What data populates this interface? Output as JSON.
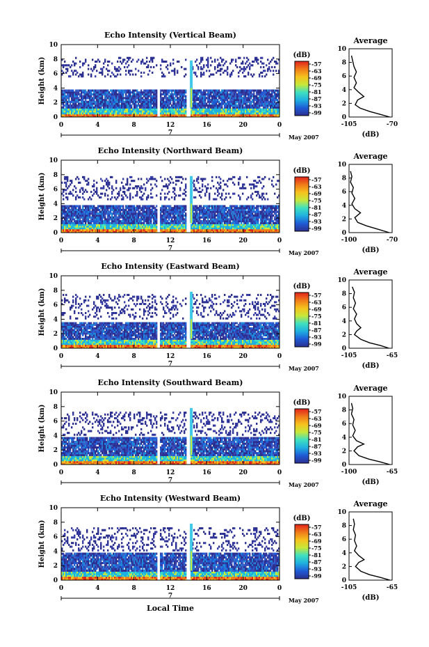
{
  "chart_data": [
    {
      "type": "heatmap",
      "title": "Echo Intensity (Vertical Beam)",
      "ylabel": "Height (km)",
      "x_ticks": [
        "0",
        "4",
        "8",
        "12",
        "16",
        "20",
        "0"
      ],
      "y_ticks": [
        "0",
        "2",
        "4",
        "6",
        "8",
        "10"
      ],
      "xlim": [
        0,
        24
      ],
      "ylim": [
        0,
        10
      ],
      "date_label": "7",
      "month_label": "May 2007",
      "colorbar": {
        "unit": "(dB)",
        "ticks": [
          "-57",
          "-63",
          "-69",
          "-75",
          "-81",
          "-87",
          "-93",
          "-99"
        ]
      },
      "gap_hours": [
        10.5,
        13.8
      ],
      "spike_hour": 14.3,
      "layers": [
        {
          "from": 0,
          "to": 0.4,
          "level": "high"
        },
        {
          "from": 0.4,
          "to": 1.2,
          "level": "mid"
        },
        {
          "from": 1.2,
          "to": 3.8,
          "level": "low"
        },
        {
          "from": 5.5,
          "to": 8.3,
          "level": "sparse"
        }
      ],
      "profile": {
        "title": "Average",
        "xlabel": "(dB)",
        "x_ticks": [
          "-105",
          "-70"
        ],
        "xlim": [
          -105,
          -70
        ],
        "y_ticks": [
          "0",
          "2",
          "4",
          "6",
          "8",
          "10"
        ],
        "points": [
          [
            -72,
            0
          ],
          [
            -80,
            0.4
          ],
          [
            -88,
            0.8
          ],
          [
            -96,
            1.3
          ],
          [
            -100,
            1.8
          ],
          [
            -98,
            2.5
          ],
          [
            -93,
            3.0
          ],
          [
            -97,
            3.6
          ],
          [
            -101,
            4.3
          ],
          [
            -99,
            5.0
          ],
          [
            -101,
            5.8
          ],
          [
            -99,
            6.6
          ],
          [
            -101,
            7.4
          ],
          [
            -102,
            8.2
          ],
          [
            -103,
            9
          ]
        ]
      }
    },
    {
      "type": "heatmap",
      "title": "Echo Intensity (Northward Beam)",
      "ylabel": "Height (km)",
      "x_ticks": [
        "0",
        "4",
        "8",
        "12",
        "16",
        "20",
        "0"
      ],
      "y_ticks": [
        "0",
        "2",
        "4",
        "6",
        "8",
        "10"
      ],
      "xlim": [
        0,
        24
      ],
      "ylim": [
        0,
        10
      ],
      "date_label": "7",
      "month_label": "May 2007",
      "colorbar": {
        "unit": "(dB)",
        "ticks": [
          "-57",
          "-63",
          "-69",
          "-75",
          "-81",
          "-87",
          "-93",
          "-99"
        ]
      },
      "gap_hours": [
        10.5,
        13.8
      ],
      "spike_hour": 14.3,
      "layers": [
        {
          "from": 0,
          "to": 0.5,
          "level": "high"
        },
        {
          "from": 0.5,
          "to": 1.2,
          "level": "mid"
        },
        {
          "from": 1.2,
          "to": 3.8,
          "level": "low"
        },
        {
          "from": 4.5,
          "to": 7.8,
          "level": "sparse"
        }
      ],
      "profile": {
        "title": "Average",
        "xlabel": "(dB)",
        "x_ticks": [
          "-100",
          "-70"
        ],
        "xlim": [
          -100,
          -70
        ],
        "y_ticks": [
          "0",
          "2",
          "4",
          "6",
          "8",
          "10"
        ],
        "points": [
          [
            -72,
            0
          ],
          [
            -80,
            0.5
          ],
          [
            -88,
            1.0
          ],
          [
            -94,
            1.5
          ],
          [
            -96,
            2.2
          ],
          [
            -92,
            2.9
          ],
          [
            -96,
            3.5
          ],
          [
            -98,
            4.2
          ],
          [
            -96,
            5.0
          ],
          [
            -98,
            5.8
          ],
          [
            -97,
            6.6
          ],
          [
            -99,
            7.4
          ],
          [
            -98,
            8.2
          ],
          [
            -99,
            9
          ]
        ]
      }
    },
    {
      "type": "heatmap",
      "title": "Echo Intensity (Eastward Beam)",
      "ylabel": "Height (km)",
      "x_ticks": [
        "0",
        "4",
        "8",
        "12",
        "16",
        "20",
        "0"
      ],
      "y_ticks": [
        "0",
        "2",
        "4",
        "6",
        "8",
        "10"
      ],
      "xlim": [
        0,
        24
      ],
      "ylim": [
        0,
        10
      ],
      "date_label": "7",
      "month_label": "May 2007",
      "colorbar": {
        "unit": "(dB)",
        "ticks": [
          "-57",
          "-63",
          "-69",
          "-75",
          "-81",
          "-87",
          "-93",
          "-99"
        ]
      },
      "gap_hours": [
        10.5,
        13.8
      ],
      "spike_hour": 14.3,
      "layers": [
        {
          "from": 0,
          "to": 0.5,
          "level": "high"
        },
        {
          "from": 0.5,
          "to": 1.2,
          "level": "mid"
        },
        {
          "from": 1.2,
          "to": 3.6,
          "level": "low"
        },
        {
          "from": 4.0,
          "to": 7.5,
          "level": "sparse"
        }
      ],
      "profile": {
        "title": "Average",
        "xlabel": "(dB)",
        "x_ticks": [
          "-105",
          "-65"
        ],
        "xlim": [
          -105,
          -65
        ],
        "y_ticks": [
          "0",
          "2",
          "4",
          "6",
          "8",
          "10"
        ],
        "points": [
          [
            -68,
            0
          ],
          [
            -76,
            0.4
          ],
          [
            -86,
            0.8
          ],
          [
            -94,
            1.3
          ],
          [
            -100,
            2.0
          ],
          [
            -98,
            2.5
          ],
          [
            -94,
            3.0
          ],
          [
            -98,
            3.6
          ],
          [
            -100,
            4.3
          ],
          [
            -98,
            5.0
          ],
          [
            -101,
            5.8
          ],
          [
            -99,
            6.6
          ],
          [
            -101,
            7.4
          ],
          [
            -100,
            8.2
          ],
          [
            -102,
            9
          ]
        ]
      }
    },
    {
      "type": "heatmap",
      "title": "Echo Intensity (Southward Beam)",
      "ylabel": "Height (km)",
      "x_ticks": [
        "0",
        "4",
        "8",
        "12",
        "16",
        "20",
        "0"
      ],
      "y_ticks": [
        "0",
        "2",
        "4",
        "6",
        "8",
        "10"
      ],
      "xlim": [
        0,
        24
      ],
      "ylim": [
        0,
        10
      ],
      "date_label": "7",
      "month_label": "May 2007",
      "colorbar": {
        "unit": "(dB)",
        "ticks": [
          "-57",
          "-63",
          "-69",
          "-75",
          "-81",
          "-87",
          "-93",
          "-99"
        ]
      },
      "gap_hours": [
        10.5,
        13.8
      ],
      "spike_hour": 14.3,
      "layers": [
        {
          "from": 0,
          "to": 0.5,
          "level": "high"
        },
        {
          "from": 0.5,
          "to": 1.2,
          "level": "mid"
        },
        {
          "from": 1.2,
          "to": 3.8,
          "level": "low"
        },
        {
          "from": 4.0,
          "to": 7.3,
          "level": "sparse"
        }
      ],
      "profile": {
        "title": "Average",
        "xlabel": "(dB)",
        "x_ticks": [
          "-100",
          "-65"
        ],
        "xlim": [
          -100,
          -65
        ],
        "y_ticks": [
          "0",
          "2",
          "4",
          "6",
          "8",
          "10"
        ],
        "points": [
          [
            -67,
            0
          ],
          [
            -75,
            0.4
          ],
          [
            -84,
            0.8
          ],
          [
            -92,
            1.3
          ],
          [
            -96,
            2.0
          ],
          [
            -93,
            2.6
          ],
          [
            -88,
            3.0
          ],
          [
            -94,
            3.5
          ],
          [
            -97,
            4.2
          ],
          [
            -95,
            5.0
          ],
          [
            -97,
            5.8
          ],
          [
            -96,
            6.6
          ],
          [
            -98,
            7.4
          ],
          [
            -97,
            8.2
          ],
          [
            -98,
            9
          ]
        ]
      }
    },
    {
      "type": "heatmap",
      "title": "Echo Intensity (Westward Beam)",
      "ylabel": "Height (km)",
      "x_ticks": [
        "0",
        "4",
        "8",
        "12",
        "16",
        "20",
        "0"
      ],
      "y_ticks": [
        "0",
        "2",
        "4",
        "6",
        "8",
        "10"
      ],
      "xlim": [
        0,
        24
      ],
      "ylim": [
        0,
        10
      ],
      "date_label": "7",
      "month_label": "May 2007",
      "xlabel": "Local Time",
      "colorbar": {
        "unit": "(dB)",
        "ticks": [
          "-57",
          "-63",
          "-69",
          "-75",
          "-81",
          "-87",
          "-93",
          "-99"
        ]
      },
      "gap_hours": [
        10.5,
        13.8
      ],
      "spike_hour": 14.3,
      "layers": [
        {
          "from": 0,
          "to": 0.5,
          "level": "high"
        },
        {
          "from": 0.5,
          "to": 1.2,
          "level": "mid"
        },
        {
          "from": 1.2,
          "to": 3.8,
          "level": "low"
        },
        {
          "from": 4.0,
          "to": 7.3,
          "level": "sparse"
        }
      ],
      "profile": {
        "title": "Average",
        "xlabel": "(dB)",
        "x_ticks": [
          "-105",
          "-65"
        ],
        "xlim": [
          -105,
          -65
        ],
        "y_ticks": [
          "0",
          "2",
          "4",
          "6",
          "8",
          "10"
        ],
        "points": [
          [
            -67,
            0
          ],
          [
            -76,
            0.4
          ],
          [
            -86,
            0.8
          ],
          [
            -94,
            1.3
          ],
          [
            -99,
            2.0
          ],
          [
            -96,
            2.6
          ],
          [
            -91,
            3.0
          ],
          [
            -96,
            3.6
          ],
          [
            -100,
            4.3
          ],
          [
            -98,
            5.0
          ],
          [
            -100,
            5.8
          ],
          [
            -99,
            6.6
          ],
          [
            -101,
            7.4
          ],
          [
            -100,
            8.2
          ],
          [
            -101,
            9
          ]
        ]
      }
    }
  ],
  "colors": {
    "colorbar_stops": [
      "#2b2f8f",
      "#1f5bd6",
      "#1fb0e0",
      "#3fe0c0",
      "#c8e83a",
      "#f6c21e",
      "#f07a1a",
      "#e0241c"
    ]
  }
}
